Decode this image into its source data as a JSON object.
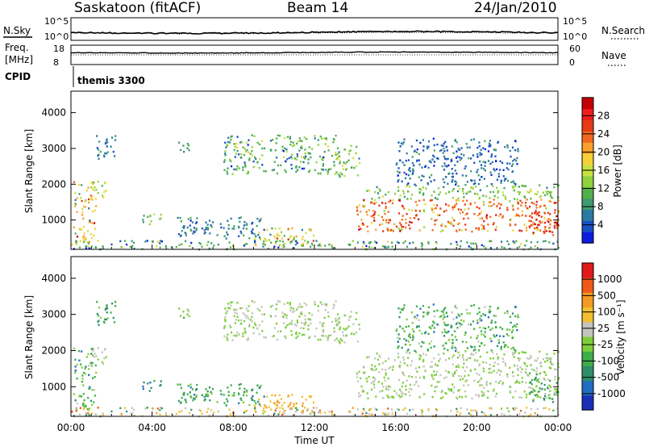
{
  "header": {
    "radar": "Saskatoon (fitACF)",
    "beam": "Beam 14",
    "date": "24/Jan/2010"
  },
  "noise_panel": {
    "left_label": "N.Sky",
    "right_label": "N.Search",
    "ticks": [
      "10^5",
      "10^0"
    ],
    "series_levels": {
      "sky": 0.35,
      "search": 0.32
    }
  },
  "freq_panel": {
    "left_label_1": "Freq.",
    "left_label_2": "[MHz]",
    "left_ticks": [
      "18",
      "8"
    ],
    "right_label": "Nave",
    "right_ticks": [
      "60",
      "0"
    ],
    "series_levels": {
      "freq": 0.62,
      "nave": 0.3
    }
  },
  "cpid": {
    "label": "CPID",
    "program": "themis 3300"
  },
  "chart_data": [
    {
      "type": "heatmap",
      "name": "power",
      "ylabel": "Slant Range [km]",
      "yticks": [
        "4000",
        "3000",
        "2000",
        "1000"
      ],
      "ytick_values": [
        4000,
        3000,
        2000,
        1000
      ],
      "ylim": [
        180,
        4600
      ],
      "xlim": [
        0,
        24
      ],
      "colorbar": {
        "label": "Power [dB]",
        "ticks": [
          "28",
          "24",
          "20",
          "16",
          "12",
          "8",
          "4"
        ],
        "colors": [
          "#0b1ee0",
          "#1a4fc2",
          "#2c7aa2",
          "#3e9c70",
          "#52b04a",
          "#8fd23c",
          "#c9e042",
          "#f5d23a",
          "#f7a12a",
          "#f2691e",
          "#e63b16",
          "#ee1d1d",
          "#c40000"
        ]
      }
    },
    {
      "type": "heatmap",
      "name": "velocity",
      "ylabel": "Slant Range [km]",
      "yticks": [
        "4000",
        "3000",
        "2000",
        "1000"
      ],
      "ytick_values": [
        4000,
        3000,
        2000,
        1000
      ],
      "ylim": [
        180,
        4600
      ],
      "xlim": [
        0,
        24
      ],
      "xticks": [
        "00:00",
        "04:00",
        "08:00",
        "12:00",
        "16:00",
        "20:00",
        "00:00"
      ],
      "xtick_values": [
        0,
        4,
        8,
        12,
        16,
        20,
        24
      ],
      "xlabel": "Time UT",
      "colorbar": {
        "label": "Velocity [m s⁻¹]",
        "ticks": [
          "1000",
          "500",
          "100",
          "25",
          "-25",
          "-100",
          "-500",
          "-1000"
        ],
        "colors": [
          "#1a2fb8",
          "#1f6ec2",
          "#2f8f6a",
          "#3fae4a",
          "#7ccf3a",
          "#c4c4bc",
          "#f0c030",
          "#f59a22",
          "#ef5a18",
          "#e01a1a"
        ]
      }
    }
  ],
  "scatter_regions": [
    {
      "t0": 0.1,
      "t1": 1.2,
      "r0": 400,
      "r1": 2100,
      "p": [
        0.2,
        0.6,
        0.95
      ],
      "v": [
        0.1,
        0.4,
        0.6
      ]
    },
    {
      "t0": 1.0,
      "t1": 1.7,
      "r0": 1500,
      "r1": 2100,
      "p": [
        0.3,
        0.5,
        0.6
      ],
      "v": [
        0.5,
        0.5,
        0.6
      ]
    },
    {
      "t0": 1.2,
      "t1": 2.2,
      "r0": 2700,
      "r1": 3400,
      "p": [
        0.1,
        0.2,
        0.3
      ],
      "v": [
        0.2,
        0.3,
        0.5
      ]
    },
    {
      "t0": 3.5,
      "t1": 4.5,
      "r0": 900,
      "r1": 1200,
      "p": [
        0.2,
        0.35,
        0.5
      ],
      "v": [
        0.0,
        0.2,
        0.4
      ]
    },
    {
      "t0": 5.2,
      "t1": 5.8,
      "r0": 2800,
      "r1": 3200,
      "p": [
        0.15,
        0.3,
        0.4
      ],
      "v": [
        0.3,
        0.5,
        0.6
      ]
    },
    {
      "t0": 7.5,
      "t1": 13.2,
      "r0": 2300,
      "r1": 3400,
      "p": [
        0.05,
        0.35,
        0.6
      ],
      "v": [
        0.45,
        0.5,
        0.55
      ]
    },
    {
      "t0": 13.0,
      "t1": 14.2,
      "r0": 2200,
      "r1": 3100,
      "p": [
        0.2,
        0.4,
        0.6
      ],
      "v": [
        0.45,
        0.5,
        0.55
      ]
    },
    {
      "t0": 14.0,
      "t1": 24.0,
      "r0": 700,
      "r1": 1600,
      "p": [
        0.4,
        0.75,
        1.0
      ],
      "v": [
        0.4,
        0.5,
        0.6
      ]
    },
    {
      "t0": 14.5,
      "t1": 24.0,
      "r0": 1600,
      "r1": 2000,
      "p": [
        0.2,
        0.4,
        0.55
      ],
      "v": [
        0.4,
        0.5,
        0.6
      ]
    },
    {
      "t0": 16.0,
      "t1": 22.0,
      "r0": 2000,
      "r1": 3300,
      "p": [
        0.0,
        0.15,
        0.35
      ],
      "v": [
        0.1,
        0.35,
        0.6
      ]
    },
    {
      "t0": 5.0,
      "t1": 9.5,
      "r0": 500,
      "r1": 1100,
      "p": [
        0.05,
        0.2,
        0.35
      ],
      "v": [
        0.15,
        0.3,
        0.5
      ]
    },
    {
      "t0": 9.0,
      "t1": 12.0,
      "r0": 300,
      "r1": 800,
      "p": [
        0.2,
        0.5,
        0.9
      ],
      "v": [
        0.6,
        0.7,
        0.75
      ]
    },
    {
      "t0": 0.0,
      "t1": 24.0,
      "r0": 200,
      "r1": 450,
      "p": [
        0.0,
        0.3,
        0.6
      ],
      "v": [
        0.2,
        0.6,
        0.9
      ]
    },
    {
      "t0": 22.5,
      "t1": 24.0,
      "r0": 600,
      "r1": 1400,
      "p": [
        0.6,
        0.9,
        1.0
      ],
      "v": [
        0.2,
        0.35,
        0.45
      ]
    }
  ]
}
